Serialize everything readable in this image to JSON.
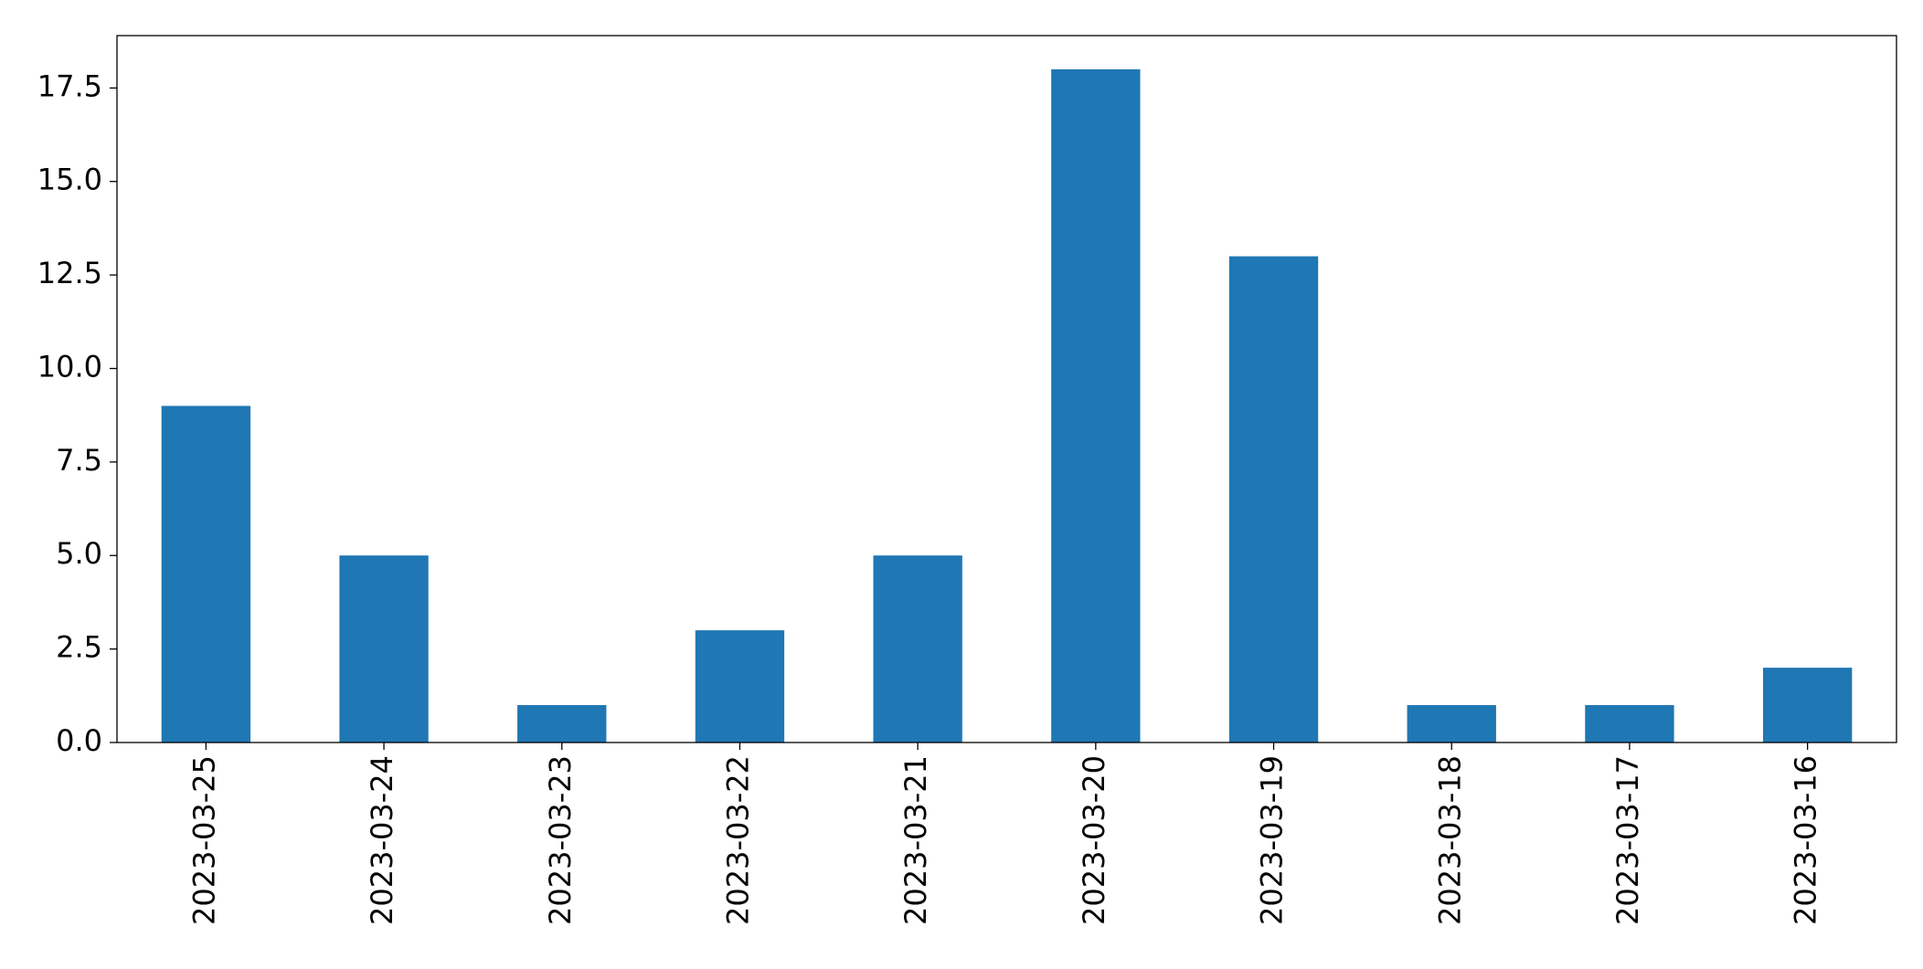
{
  "chart_data": {
    "type": "bar",
    "categories": [
      "2023-03-25",
      "2023-03-24",
      "2023-03-23",
      "2023-03-22",
      "2023-03-21",
      "2023-03-20",
      "2023-03-19",
      "2023-03-18",
      "2023-03-17",
      "2023-03-16"
    ],
    "values": [
      9,
      5,
      1,
      3,
      5,
      18,
      13,
      1,
      1,
      2
    ],
    "color": "#1f77b4",
    "ylim": [
      0,
      18.9
    ],
    "yticks": [
      {
        "value": 0,
        "label": "0.0"
      },
      2.5,
      {
        "value": 5,
        "label": "5.0"
      },
      7.5,
      {
        "value": 10,
        "label": "10.0"
      },
      12.5,
      {
        "value": 15,
        "label": "15.0"
      },
      17.5
    ],
    "grid": false
  }
}
